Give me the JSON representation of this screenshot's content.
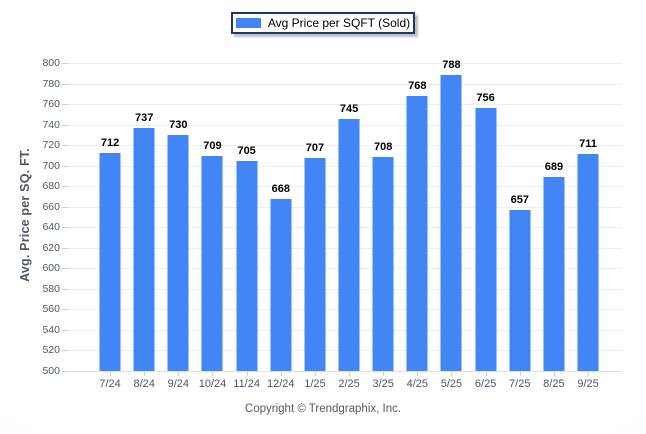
{
  "legend": {
    "label": "Avg Price per SQFT (Sold)"
  },
  "y_axis": {
    "title": "Avg. Price per SQ. FT."
  },
  "footer": {
    "copyright": "Copyright © Trendgraphix, Inc."
  },
  "colors": {
    "bar": "#4285f4",
    "legend_border": "#1f3864",
    "gridline": "#ededed",
    "axis_line": "#dfe1e4",
    "tick": "#ccd1d9",
    "axis_label_text": "#4c5766",
    "value_label_text": "#000000",
    "footer_text": "#595959"
  },
  "chart_data": {
    "type": "bar",
    "title": "Avg Price per SQFT (Sold)",
    "categories": [
      "7/24",
      "8/24",
      "9/24",
      "10/24",
      "11/24",
      "12/24",
      "1/25",
      "2/25",
      "3/25",
      "4/25",
      "5/25",
      "6/25",
      "7/25",
      "8/25",
      "9/25"
    ],
    "values": [
      712,
      737,
      730,
      709,
      705,
      668,
      707,
      745,
      708,
      768,
      788,
      756,
      657,
      689,
      711
    ],
    "xlabel": "",
    "ylabel": "Avg. Price per SQ. FT.",
    "ylim": [
      500,
      800
    ],
    "ytick_step": 20,
    "grid": true,
    "legend_position": "top-center",
    "value_labels": true
  }
}
